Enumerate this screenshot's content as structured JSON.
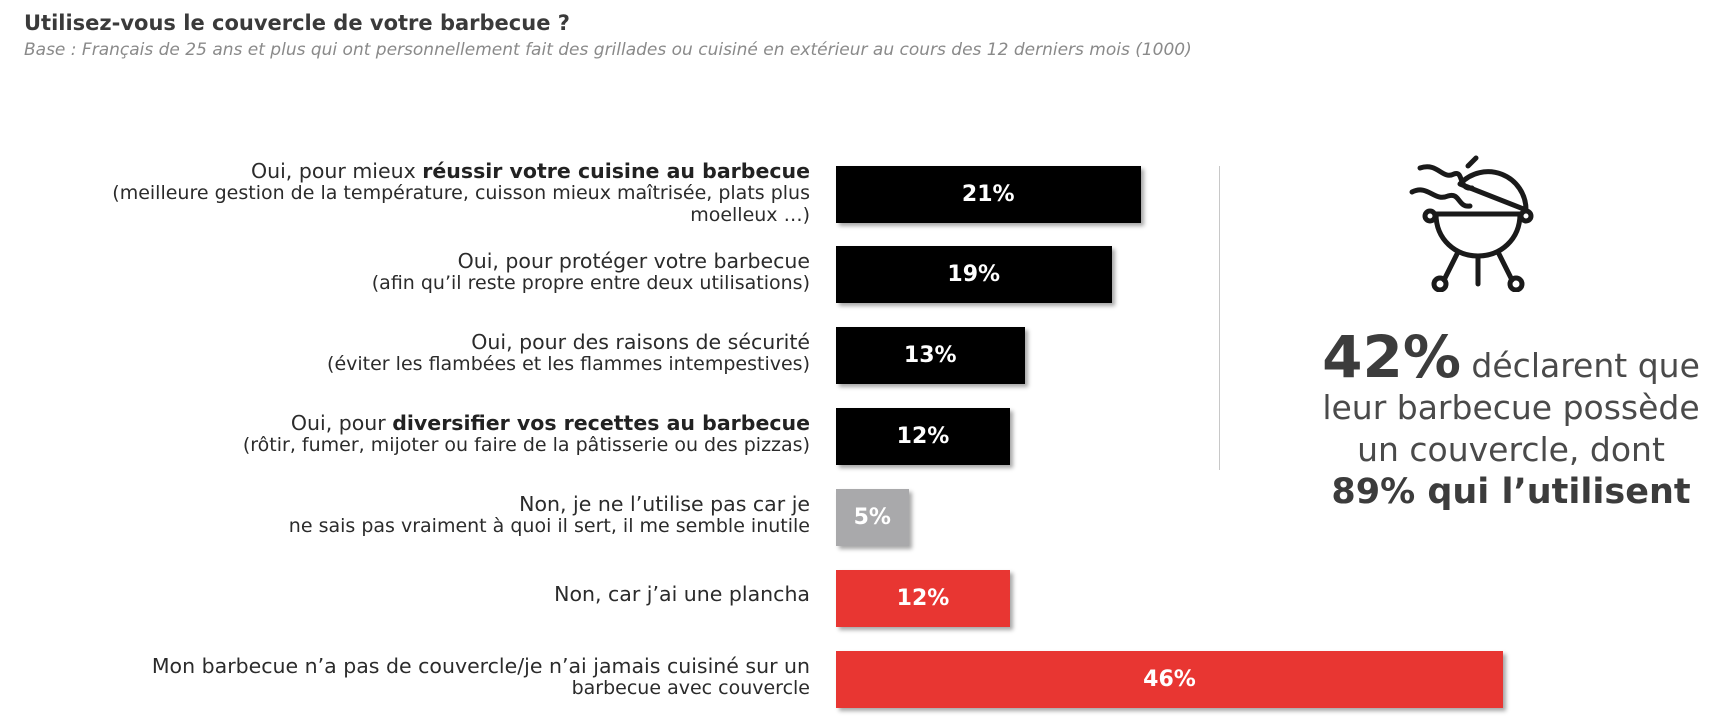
{
  "title": "Utilisez-vous le couvercle de votre barbecue ?",
  "subtitle": "Base : Français de 25 ans et plus qui ont personnellement fait des grillades ou cuisiné en extérieur au cours des 12 derniers mois (1000)",
  "colors": {
    "black": "#000000",
    "grey": "#a9a9ab",
    "red": "#e83632"
  },
  "chart_data": {
    "type": "bar",
    "orientation": "horizontal",
    "unit": "%",
    "categories": [
      "Oui, pour mieux réussir votre cuisine au barbecue (meilleure gestion de la température, cuisson mieux maîtrisée, plats plus moelleux …)",
      "Oui, pour protéger votre barbecue (afin qu’il reste propre entre deux utilisations)",
      "Oui, pour des raisons de sécurité (éviter les flambées et les flammes intempestives)",
      "Oui, pour diversifier vos recettes au barbecue (rôtir, fumer, mijoter ou faire de la pâtisserie ou des pizzas)",
      "Non, je ne l’utilise pas car je ne sais pas vraiment à quoi il sert, il me semble inutile",
      "Non, car j’ai une plancha",
      "Mon barbecue n’a pas de couvercle/je n’ai jamais cuisiné sur un barbecue avec couvercle"
    ],
    "values": [
      21,
      19,
      13,
      12,
      5,
      12,
      46
    ],
    "value_labels": [
      "21%",
      "19%",
      "13%",
      "12%",
      "5%",
      "12%",
      "46%"
    ],
    "bar_colors": [
      "#000000",
      "#000000",
      "#000000",
      "#000000",
      "#a9a9ab",
      "#e83632",
      "#e83632"
    ],
    "label_parts": [
      {
        "plain": "Oui, pour mieux ",
        "bold": "réussir votre cuisine au barbecue",
        "line2": "(meilleure gestion de la température, cuisson mieux maîtrisée, plats plus",
        "line3": "moelleux …)"
      },
      {
        "plain": "Oui, pour protéger votre barbecue",
        "bold": "",
        "line2": "(afin qu’il reste propre entre deux utilisations)",
        "line3": ""
      },
      {
        "plain": "Oui, pour des raisons de sécurité",
        "bold": "",
        "line2": "(éviter les flambées et les flammes intempestives)",
        "line3": ""
      },
      {
        "plain": "Oui, pour ",
        "bold": "diversifier vos recettes au barbecue",
        "line2": "(rôtir, fumer, mijoter ou faire de la pâtisserie ou des pizzas)",
        "line3": ""
      },
      {
        "plain": "Non, je ne l’utilise pas car je",
        "bold": "",
        "line2": "ne sais pas vraiment à quoi il sert, il me semble inutile",
        "line3": ""
      },
      {
        "plain": "Non, car j’ai une plancha",
        "bold": "",
        "line2": "",
        "line3": ""
      },
      {
        "plain": "Mon barbecue n’a pas de couvercle/je n’ai jamais cuisiné sur un",
        "bold": "",
        "line2": "barbecue avec couvercle",
        "line3": ""
      }
    ]
  },
  "side": {
    "icon": "grill-icon",
    "big_value": "42%",
    "line1_rest": " déclarent que",
    "line2": "leur barbecue possède",
    "line3": "un couvercle, dont",
    "line4_bold": "89% qui l’utilisent"
  }
}
